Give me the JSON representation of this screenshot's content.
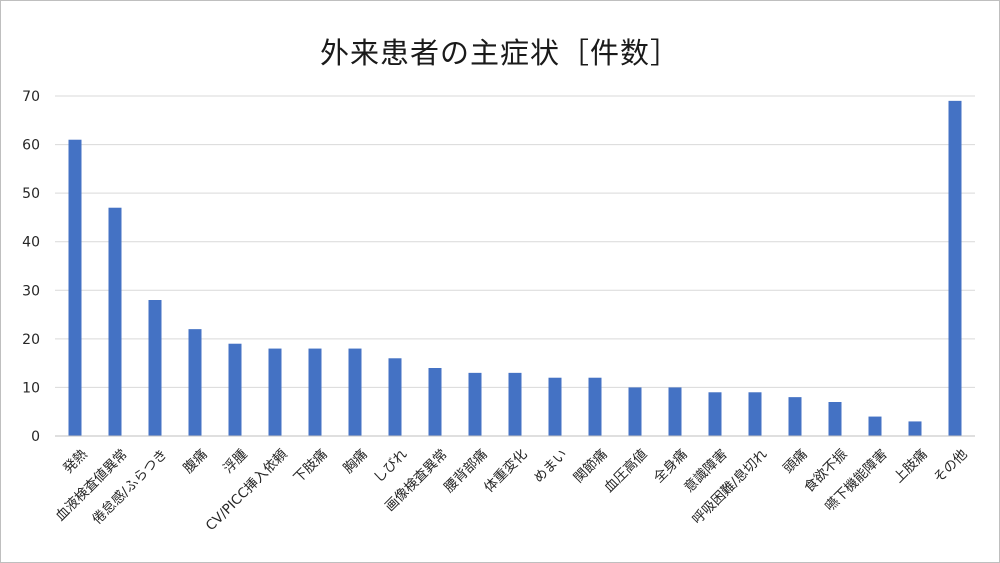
{
  "chart_data": {
    "type": "bar",
    "title": "外来患者の主症状［件数］",
    "xlabel": "",
    "ylabel": "",
    "ylim": [
      0,
      70
    ],
    "yticks": [
      0,
      10,
      20,
      30,
      40,
      50,
      60,
      70
    ],
    "grid": true,
    "legend": "none",
    "bar_color": "#4472c4",
    "categories": [
      "発熱",
      "血液検査値異常",
      "倦怠感/ふらつき",
      "腹痛",
      "浮腫",
      "CV/PICC挿入依頼",
      "下肢痛",
      "胸痛",
      "しびれ",
      "画像検査異常",
      "腰背部痛",
      "体重変化",
      "めまい",
      "関節痛",
      "血圧高値",
      "全身痛",
      "意識障害",
      "呼吸困難/息切れ",
      "頭痛",
      "食欲不振",
      "嚥下機能障害",
      "上肢痛",
      "その他"
    ],
    "values": [
      61,
      47,
      28,
      22,
      19,
      18,
      18,
      18,
      16,
      14,
      13,
      13,
      12,
      12,
      10,
      10,
      9,
      9,
      8,
      7,
      4,
      3,
      69
    ]
  }
}
